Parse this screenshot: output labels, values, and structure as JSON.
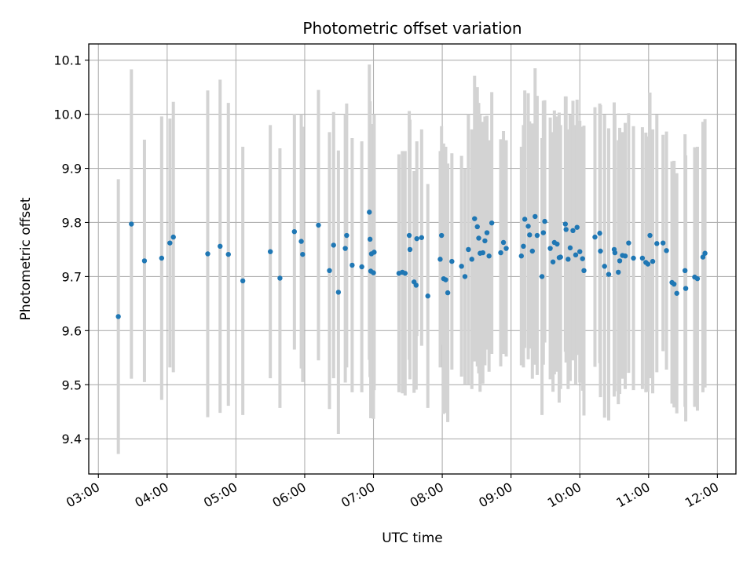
{
  "chart_data": {
    "type": "scatter",
    "title": "Photometric offset variation",
    "xlabel": "UTC time",
    "ylabel": "Photometric offset",
    "x_unit": "hours",
    "xlim": [
      2.86,
      12.27
    ],
    "ylim": [
      9.335,
      10.13
    ],
    "x_ticks": [
      {
        "value": 3,
        "label": "03:00"
      },
      {
        "value": 4,
        "label": "04:00"
      },
      {
        "value": 5,
        "label": "05:00"
      },
      {
        "value": 6,
        "label": "06:00"
      },
      {
        "value": 7,
        "label": "07:00"
      },
      {
        "value": 8,
        "label": "08:00"
      },
      {
        "value": 9,
        "label": "09:00"
      },
      {
        "value": 10,
        "label": "10:00"
      },
      {
        "value": 11,
        "label": "11:00"
      },
      {
        "value": 12,
        "label": "12:00"
      }
    ],
    "y_ticks": [
      {
        "value": 9.4,
        "label": "9.4"
      },
      {
        "value": 9.5,
        "label": "9.5"
      },
      {
        "value": 9.6,
        "label": "9.6"
      },
      {
        "value": 9.7,
        "label": "9.7"
      },
      {
        "value": 9.8,
        "label": "9.8"
      },
      {
        "value": 9.9,
        "label": "9.9"
      },
      {
        "value": 10.0,
        "label": "10.0"
      },
      {
        "value": 10.1,
        "label": "10.1"
      }
    ],
    "grid": true,
    "point_color": "#1f77b4",
    "errorbar_color": "#d3d3d3",
    "points": [
      [
        3.29,
        9.626,
        0.254
      ],
      [
        3.48,
        9.797,
        0.286
      ],
      [
        3.67,
        9.729,
        0.224
      ],
      [
        3.92,
        9.734,
        0.262
      ],
      [
        4.04,
        9.762,
        0.23
      ],
      [
        4.09,
        9.773,
        0.25
      ],
      [
        4.59,
        9.742,
        0.302
      ],
      [
        4.77,
        9.756,
        0.308
      ],
      [
        4.89,
        9.741,
        0.28
      ],
      [
        5.1,
        9.692,
        0.248
      ],
      [
        5.5,
        9.746,
        0.234
      ],
      [
        5.64,
        9.697,
        0.24
      ],
      [
        5.85,
        9.783,
        0.218
      ],
      [
        5.95,
        9.765,
        0.235
      ],
      [
        5.97,
        9.741,
        0.236
      ],
      [
        6.2,
        9.795,
        0.25
      ],
      [
        6.36,
        9.711,
        0.256
      ],
      [
        6.42,
        9.758,
        0.246
      ],
      [
        6.49,
        9.671,
        0.262
      ],
      [
        6.59,
        9.752,
        0.248
      ],
      [
        6.61,
        9.776,
        0.244
      ],
      [
        6.69,
        9.721,
        0.235
      ],
      [
        6.83,
        9.718,
        0.232
      ],
      [
        6.94,
        9.819,
        0.273
      ],
      [
        6.95,
        9.769,
        0.255
      ],
      [
        6.96,
        9.71,
        0.272
      ],
      [
        6.97,
        9.742,
        0.24
      ],
      [
        7.0,
        9.707,
        0.27
      ],
      [
        7.01,
        9.745,
        0.255
      ],
      [
        7.37,
        9.706,
        0.22
      ],
      [
        7.42,
        9.708,
        0.224
      ],
      [
        7.46,
        9.706,
        0.226
      ],
      [
        7.52,
        9.776,
        0.23
      ],
      [
        7.53,
        9.75,
        0.24
      ],
      [
        7.59,
        9.69,
        0.205
      ],
      [
        7.62,
        9.684,
        0.193
      ],
      [
        7.63,
        9.77,
        0.18
      ],
      [
        7.7,
        9.772,
        0.2
      ],
      [
        7.79,
        9.664,
        0.207
      ],
      [
        7.97,
        9.732,
        0.2
      ],
      [
        7.99,
        9.776,
        0.202
      ],
      [
        8.02,
        9.696,
        0.25
      ],
      [
        8.05,
        9.694,
        0.246
      ],
      [
        8.08,
        9.67,
        0.239
      ],
      [
        8.14,
        9.728,
        0.2
      ],
      [
        8.28,
        9.719,
        0.204
      ],
      [
        8.33,
        9.7,
        0.2
      ],
      [
        8.38,
        9.75,
        0.25
      ],
      [
        8.43,
        9.732,
        0.24
      ],
      [
        8.47,
        9.807,
        0.264
      ],
      [
        8.51,
        9.792,
        0.258
      ],
      [
        8.53,
        9.771,
        0.25
      ],
      [
        8.55,
        9.743,
        0.256
      ],
      [
        8.59,
        9.744,
        0.242
      ],
      [
        8.62,
        9.766,
        0.23
      ],
      [
        8.65,
        9.781,
        0.216
      ],
      [
        8.68,
        9.738,
        0.214
      ],
      [
        8.72,
        9.799,
        0.242
      ],
      [
        8.85,
        9.744,
        0.21
      ],
      [
        8.89,
        9.763,
        0.206
      ],
      [
        8.93,
        9.752,
        0.2
      ],
      [
        9.15,
        9.738,
        0.202
      ],
      [
        9.18,
        9.756,
        0.224
      ],
      [
        9.2,
        9.806,
        0.238
      ],
      [
        9.25,
        9.793,
        0.246
      ],
      [
        9.27,
        9.777,
        0.21
      ],
      [
        9.31,
        9.747,
        0.236
      ],
      [
        9.35,
        9.811,
        0.274
      ],
      [
        9.38,
        9.776,
        0.258
      ],
      [
        9.45,
        9.7,
        0.256
      ],
      [
        9.47,
        9.781,
        0.244
      ],
      [
        9.49,
        9.802,
        0.224
      ],
      [
        9.57,
        9.752,
        0.242
      ],
      [
        9.61,
        9.727,
        0.24
      ],
      [
        9.63,
        9.763,
        0.244
      ],
      [
        9.67,
        9.76,
        0.236
      ],
      [
        9.7,
        9.735,
        0.268
      ],
      [
        9.72,
        9.736,
        0.244
      ],
      [
        9.79,
        9.797,
        0.236
      ],
      [
        9.8,
        9.787,
        0.246
      ],
      [
        9.83,
        9.732,
        0.24
      ],
      [
        9.86,
        9.753,
        0.246
      ],
      [
        9.9,
        9.785,
        0.24
      ],
      [
        9.94,
        9.74,
        0.24
      ],
      [
        9.96,
        9.791,
        0.236
      ],
      [
        10.0,
        9.746,
        0.242
      ],
      [
        10.04,
        9.733,
        0.244
      ],
      [
        10.06,
        9.711,
        0.268
      ],
      [
        10.22,
        9.773,
        0.24
      ],
      [
        10.29,
        9.78,
        0.24
      ],
      [
        10.3,
        9.747,
        0.27
      ],
      [
        10.36,
        9.719,
        0.28
      ],
      [
        10.42,
        9.704,
        0.27
      ],
      [
        10.5,
        9.75,
        0.272
      ],
      [
        10.51,
        9.744,
        0.256
      ],
      [
        10.56,
        9.708,
        0.244
      ],
      [
        10.58,
        9.729,
        0.246
      ],
      [
        10.62,
        9.739,
        0.228
      ],
      [
        10.66,
        9.738,
        0.246
      ],
      [
        10.71,
        9.762,
        0.24
      ],
      [
        10.78,
        9.734,
        0.244
      ],
      [
        10.91,
        9.734,
        0.242
      ],
      [
        10.96,
        9.726,
        0.24
      ],
      [
        10.99,
        9.723,
        0.236
      ],
      [
        11.02,
        9.776,
        0.264
      ],
      [
        11.06,
        9.728,
        0.244
      ],
      [
        11.12,
        9.761,
        0.238
      ],
      [
        11.21,
        9.762,
        0.2
      ],
      [
        11.26,
        9.748,
        0.22
      ],
      [
        11.34,
        9.689,
        0.224
      ],
      [
        11.37,
        9.686,
        0.228
      ],
      [
        11.41,
        9.669,
        0.222
      ],
      [
        11.53,
        9.711,
        0.252
      ],
      [
        11.54,
        9.678,
        0.246
      ],
      [
        11.67,
        9.699,
        0.24
      ],
      [
        11.71,
        9.696,
        0.244
      ],
      [
        11.79,
        9.736,
        0.25
      ],
      [
        11.82,
        9.743,
        0.248
      ]
    ]
  }
}
